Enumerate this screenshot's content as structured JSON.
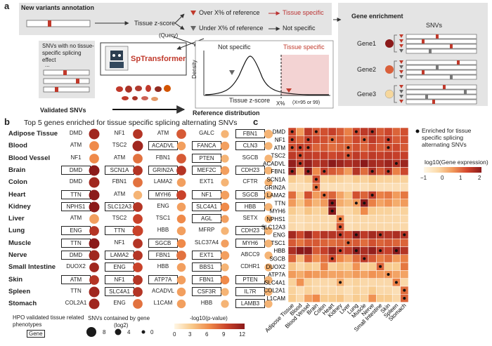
{
  "panel_a": {
    "label": "a",
    "annotation_title": "New variants annotation",
    "tissue_zscore": "Tissue z-score",
    "query": "(Query)",
    "over": "Over X% of reference",
    "tissue_specific": "Tissue specific",
    "under": "Under X% of reference",
    "not_specific": "Not specific",
    "snv_box_text": "SNVs with no tissue-specific splicing effect",
    "ellipsis": "...",
    "validated": "Validated SNVs",
    "tool": "SpTransformer",
    "dist_not_specific": "Not specific",
    "dist_tissue_specific": "Tissue specific",
    "density": "Density",
    "dist_xlabel": "Tissue z-score",
    "xpct": "X%",
    "x_note": "(X=95 or 99)",
    "ref_dist": "Reference distribution",
    "gene_enrich_title": "Gene enrichment",
    "snvs": "SNVs",
    "genes": [
      "Gene1",
      "Gene2",
      "Gene3"
    ],
    "gene_colors": [
      "#8b1a1a",
      "#d9603b",
      "#f6d79c"
    ]
  },
  "panel_b": {
    "label": "b",
    "title": "Top 5 genes enriched for tissue specific splicing alternating SNVs",
    "hpo_text": "HPO validated tissue related phenotypes",
    "gene_box": "Gene",
    "size_title": "SNVs contained  by gene",
    "size_sub": "(log2)",
    "size_labels": [
      "8",
      "4",
      "0"
    ],
    "color_title": "-log10(p-value)",
    "color_ticks": [
      "0",
      "3",
      "6",
      "9",
      "12"
    ],
    "tissues": [
      {
        "name": "Adipose Tissue",
        "genes": [
          {
            "g": "DMD",
            "b": false,
            "p": 11,
            "s": 8
          },
          {
            "g": "NF1",
            "b": false,
            "p": 10,
            "s": 7
          },
          {
            "g": "ATM",
            "b": false,
            "p": 8,
            "s": 7
          },
          {
            "g": "GALC",
            "b": false,
            "p": 4,
            "s": 5
          },
          {
            "g": "FBN1",
            "b": true,
            "p": 4,
            "s": 6
          }
        ]
      },
      {
        "name": "Blood",
        "genes": [
          {
            "g": "ATM",
            "b": false,
            "p": 6,
            "s": 7
          },
          {
            "g": "TSC2",
            "b": false,
            "p": 11,
            "s": 8
          },
          {
            "g": "ACADVL",
            "b": true,
            "p": 5,
            "s": 6
          },
          {
            "g": "FANCA",
            "b": true,
            "p": 5,
            "s": 6
          },
          {
            "g": "CLN3",
            "b": true,
            "p": 4,
            "s": 5
          }
        ]
      },
      {
        "name": "Blood Vessel",
        "genes": [
          {
            "g": "NF1",
            "b": false,
            "p": 6,
            "s": 7
          },
          {
            "g": "ATM",
            "b": false,
            "p": 7,
            "s": 7
          },
          {
            "g": "FBN1",
            "b": false,
            "p": 8,
            "s": 7
          },
          {
            "g": "PTEN",
            "b": true,
            "p": 4,
            "s": 5
          },
          {
            "g": "SGCB",
            "b": false,
            "p": 4,
            "s": 5
          }
        ]
      },
      {
        "name": "Brain",
        "genes": [
          {
            "g": "DMD",
            "b": true,
            "p": 12,
            "s": 8
          },
          {
            "g": "SCN1A",
            "b": true,
            "p": 10,
            "s": 7
          },
          {
            "g": "GRIN2A",
            "b": true,
            "p": 10,
            "s": 7
          },
          {
            "g": "MEF2C",
            "b": true,
            "p": 5,
            "s": 6
          },
          {
            "g": "CDH23",
            "b": true,
            "p": 4,
            "s": 5
          }
        ]
      },
      {
        "name": "Colon",
        "genes": [
          {
            "g": "DMD",
            "b": false,
            "p": 11,
            "s": 8
          },
          {
            "g": "FBN1",
            "b": false,
            "p": 7,
            "s": 7
          },
          {
            "g": "LAMA2",
            "b": false,
            "p": 5,
            "s": 6
          },
          {
            "g": "EXT1",
            "b": false,
            "p": 4,
            "s": 5
          },
          {
            "g": "CFTR",
            "b": false,
            "p": 4,
            "s": 5
          }
        ]
      },
      {
        "name": "Heart",
        "genes": [
          {
            "g": "TTN",
            "b": true,
            "p": 12,
            "s": 8
          },
          {
            "g": "ATM",
            "b": false,
            "p": 4,
            "s": 6
          },
          {
            "g": "MYH6",
            "b": true,
            "p": 9,
            "s": 7
          },
          {
            "g": "NF1",
            "b": true,
            "p": 5,
            "s": 6
          },
          {
            "g": "SGCB",
            "b": true,
            "p": 4,
            "s": 5
          }
        ]
      },
      {
        "name": "Kidney",
        "genes": [
          {
            "g": "NPHS1",
            "b": true,
            "p": 12,
            "s": 8
          },
          {
            "g": "SLC12A3",
            "b": true,
            "p": 10,
            "s": 7
          },
          {
            "g": "ENG",
            "b": false,
            "p": 5,
            "s": 6
          },
          {
            "g": "SLC4A1",
            "b": true,
            "p": 6,
            "s": 6
          },
          {
            "g": "HBB",
            "b": true,
            "p": 4,
            "s": 5
          }
        ]
      },
      {
        "name": "Liver",
        "genes": [
          {
            "g": "ATM",
            "b": false,
            "p": 5,
            "s": 7
          },
          {
            "g": "TSC2",
            "b": false,
            "p": 9,
            "s": 7
          },
          {
            "g": "TSC1",
            "b": false,
            "p": 6,
            "s": 6
          },
          {
            "g": "AGL",
            "b": true,
            "p": 5,
            "s": 5
          },
          {
            "g": "SETX",
            "b": false,
            "p": 4,
            "s": 5
          }
        ]
      },
      {
        "name": "Lung",
        "genes": [
          {
            "g": "ENG",
            "b": true,
            "p": 10,
            "s": 7
          },
          {
            "g": "TTN",
            "b": true,
            "p": 9,
            "s": 8
          },
          {
            "g": "HBB",
            "b": false,
            "p": 5,
            "s": 6
          },
          {
            "g": "MFRP",
            "b": false,
            "p": 4,
            "s": 5
          },
          {
            "g": "CDH23",
            "b": true,
            "p": 4,
            "s": 5
          }
        ]
      },
      {
        "name": "Muscle",
        "genes": [
          {
            "g": "TTN",
            "b": true,
            "p": 12,
            "s": 8
          },
          {
            "g": "NF1",
            "b": false,
            "p": 10,
            "s": 7
          },
          {
            "g": "SGCB",
            "b": true,
            "p": 6,
            "s": 6
          },
          {
            "g": "SLC37A4",
            "b": false,
            "p": 5,
            "s": 5
          },
          {
            "g": "MYH6",
            "b": true,
            "p": 4,
            "s": 5
          }
        ]
      },
      {
        "name": "Nerve",
        "genes": [
          {
            "g": "DMD",
            "b": true,
            "p": 11,
            "s": 8
          },
          {
            "g": "LAMA2",
            "b": true,
            "p": 10,
            "s": 7
          },
          {
            "g": "FBN1",
            "b": true,
            "p": 7,
            "s": 7
          },
          {
            "g": "EXT1",
            "b": true,
            "p": 5,
            "s": 6
          },
          {
            "g": "ABCC9",
            "b": false,
            "p": 4,
            "s": 5
          }
        ]
      },
      {
        "name": "Small Intestine",
        "genes": [
          {
            "g": "DUOX2",
            "b": false,
            "p": 11,
            "s": 7
          },
          {
            "g": "ENG",
            "b": true,
            "p": 9,
            "s": 7
          },
          {
            "g": "HBB",
            "b": false,
            "p": 5,
            "s": 6
          },
          {
            "g": "BBS1",
            "b": true,
            "p": 4,
            "s": 5
          },
          {
            "g": "CDHR1",
            "b": false,
            "p": 4,
            "s": 5
          }
        ]
      },
      {
        "name": "Skin",
        "genes": [
          {
            "g": "ATM",
            "b": true,
            "p": 10,
            "s": 7
          },
          {
            "g": "NF1",
            "b": true,
            "p": 10,
            "s": 7
          },
          {
            "g": "ATP7A",
            "b": true,
            "p": 5,
            "s": 6
          },
          {
            "g": "FBN1",
            "b": true,
            "p": 6,
            "s": 6
          },
          {
            "g": "PTEN",
            "b": true,
            "p": 4,
            "s": 5
          }
        ]
      },
      {
        "name": "Spleen",
        "genes": [
          {
            "g": "TTN",
            "b": false,
            "p": 11,
            "s": 8
          },
          {
            "g": "SLC4A1",
            "b": true,
            "p": 10,
            "s": 7
          },
          {
            "g": "ACADVL",
            "b": false,
            "p": 5,
            "s": 6
          },
          {
            "g": "CSF3R",
            "b": true,
            "p": 4,
            "s": 5
          },
          {
            "g": "IL7R",
            "b": true,
            "p": 4,
            "s": 5
          }
        ]
      },
      {
        "name": "Stomach",
        "genes": [
          {
            "g": "COL2A1",
            "b": false,
            "p": 11,
            "s": 8
          },
          {
            "g": "ENG",
            "b": false,
            "p": 7,
            "s": 7
          },
          {
            "g": "L1CAM",
            "b": false,
            "p": 5,
            "s": 6
          },
          {
            "g": "HBB",
            "b": false,
            "p": 4,
            "s": 5
          },
          {
            "g": "LAMB3",
            "b": true,
            "p": 4,
            "s": 5
          }
        ]
      }
    ]
  },
  "chart_data": {
    "type": "heatmap",
    "title": "",
    "legend_dot": "Enriched for tissue specific splicing alternating SNVs",
    "color_title": "log10(Gene expression)",
    "color_ticks": [
      "−1",
      "0",
      "1",
      "2"
    ],
    "vmin": -1,
    "vmax": 2,
    "rows": [
      "DMD",
      "NF1",
      "ATM",
      "TSC2",
      "ACADVL",
      "FBN1",
      "SCN1A",
      "GRIN2A",
      "LAMA2",
      "TTN",
      "MYH6",
      "NPHS1",
      "SLC12A3",
      "ENG",
      "TSC1",
      "HBB",
      "SGCB",
      "DUOX2",
      "ATP7A",
      "SLC4A1",
      "COL2A1",
      "L1CAM"
    ],
    "cols": [
      "Adipose Tissue",
      "Blood",
      "Blood Vessel",
      "Brain",
      "Colon",
      "Heart",
      "Kidney",
      "Liver",
      "Lung",
      "Muscle",
      "Nerve",
      "Small Intestine",
      "Skin",
      "Spleen",
      "Stomach"
    ],
    "values": [
      [
        1.2,
        0.3,
        1.4,
        1.0,
        1.1,
        1.3,
        1.0,
        0.6,
        1.2,
        1.4,
        1.5,
        1.0,
        1.2,
        0.9,
        1.1
      ],
      [
        1.2,
        0.9,
        1.3,
        1.2,
        1.1,
        0.9,
        1.0,
        0.8,
        1.2,
        1.0,
        1.4,
        1.1,
        1.3,
        1.0,
        1.1
      ],
      [
        1.1,
        1.3,
        1.2,
        0.9,
        1.0,
        0.8,
        0.9,
        0.9,
        1.1,
        0.9,
        1.2,
        1.0,
        1.1,
        1.2,
        1.0
      ],
      [
        1.4,
        1.2,
        1.4,
        1.3,
        1.3,
        1.2,
        1.3,
        1.1,
        1.4,
        1.2,
        1.4,
        1.3,
        1.4,
        1.3,
        1.3
      ],
      [
        1.9,
        1.5,
        1.9,
        1.5,
        1.6,
        2.0,
        1.8,
        1.6,
        1.7,
        2.0,
        1.7,
        1.6,
        1.8,
        1.6,
        1.8
      ],
      [
        1.8,
        0.0,
        1.9,
        0.5,
        1.3,
        1.0,
        0.8,
        0.3,
        1.5,
        0.8,
        1.6,
        1.0,
        1.4,
        0.6,
        1.2
      ],
      [
        -0.3,
        -0.5,
        -0.3,
        1.1,
        -0.4,
        -0.3,
        -0.4,
        -0.5,
        -0.3,
        -0.4,
        -0.2,
        -0.4,
        -0.4,
        -0.4,
        -0.4
      ],
      [
        -0.6,
        -0.6,
        -0.6,
        0.8,
        -0.6,
        -0.6,
        -0.6,
        -0.6,
        -0.6,
        -0.6,
        -0.5,
        -0.6,
        -0.6,
        -0.6,
        -0.6
      ],
      [
        0.8,
        -0.3,
        1.1,
        0.3,
        0.8,
        0.9,
        0.2,
        -0.2,
        1.1,
        0.9,
        1.4,
        0.6,
        0.7,
        0.3,
        0.7
      ],
      [
        0.3,
        -0.2,
        0.4,
        0.0,
        0.3,
        2.2,
        0.1,
        -0.1,
        0.3,
        2.0,
        0.6,
        0.2,
        0.4,
        0.1,
        0.3
      ],
      [
        -0.3,
        -0.5,
        -0.2,
        -0.4,
        -0.3,
        2.0,
        -0.4,
        -0.5,
        -0.3,
        0.5,
        -0.3,
        -0.4,
        -0.4,
        -0.5,
        -0.4
      ],
      [
        -0.5,
        -0.6,
        -0.5,
        -0.5,
        -0.5,
        -0.5,
        0.6,
        -0.6,
        -0.5,
        -0.5,
        -0.5,
        -0.5,
        -0.5,
        -0.5,
        -0.5
      ],
      [
        -0.5,
        -0.6,
        -0.5,
        -0.5,
        -0.5,
        -0.5,
        1.0,
        -0.6,
        -0.5,
        -0.5,
        -0.5,
        -0.5,
        -0.5,
        -0.5,
        -0.5
      ],
      [
        1.7,
        1.2,
        1.8,
        1.2,
        1.5,
        1.5,
        1.4,
        1.2,
        2.0,
        1.4,
        1.7,
        1.5,
        1.5,
        1.6,
        1.5
      ],
      [
        1.0,
        0.7,
        1.0,
        1.0,
        0.9,
        0.8,
        0.9,
        0.9,
        1.0,
        0.8,
        1.1,
        0.9,
        1.0,
        0.9,
        0.9
      ],
      [
        1.6,
        3.0,
        2.0,
        1.0,
        1.3,
        1.8,
        1.3,
        1.4,
        2.2,
        1.6,
        1.9,
        1.4,
        1.3,
        2.4,
        1.5
      ],
      [
        0.9,
        -0.1,
        1.0,
        0.4,
        0.8,
        1.2,
        0.5,
        0.2,
        0.8,
        1.4,
        1.0,
        0.6,
        0.8,
        0.3,
        0.6
      ],
      [
        -0.2,
        -0.5,
        -0.3,
        -0.4,
        0.6,
        -0.4,
        -0.2,
        -0.3,
        0.4,
        -0.4,
        -0.3,
        0.9,
        -0.3,
        -0.3,
        0.7
      ],
      [
        0.3,
        0.1,
        0.4,
        0.3,
        0.3,
        0.2,
        0.2,
        0.1,
        0.3,
        0.2,
        0.4,
        0.3,
        0.4,
        0.2,
        0.2
      ],
      [
        -0.4,
        0.4,
        -0.4,
        -0.5,
        -0.5,
        -0.5,
        0.1,
        -0.5,
        -0.4,
        -0.5,
        -0.5,
        -0.5,
        -0.5,
        0.6,
        -0.5
      ],
      [
        -0.4,
        -0.6,
        -0.4,
        -0.5,
        -0.5,
        -0.5,
        -0.5,
        -0.6,
        -0.4,
        -0.5,
        -0.3,
        -0.5,
        -0.5,
        -0.6,
        0.8
      ],
      [
        -0.3,
        -0.5,
        0.2,
        0.5,
        -0.3,
        -0.3,
        -0.2,
        -0.5,
        -0.3,
        -0.4,
        0.4,
        -0.3,
        -0.3,
        -0.5,
        0.9
      ]
    ],
    "dots": [
      [
        0,
        0
      ],
      [
        0,
        3
      ],
      [
        0,
        8
      ],
      [
        0,
        10
      ],
      [
        1,
        0
      ],
      [
        1,
        2
      ],
      [
        1,
        5
      ],
      [
        1,
        9
      ],
      [
        1,
        12
      ],
      [
        2,
        0
      ],
      [
        2,
        1
      ],
      [
        2,
        2
      ],
      [
        2,
        7
      ],
      [
        2,
        12
      ],
      [
        3,
        1
      ],
      [
        3,
        7
      ],
      [
        4,
        1
      ],
      [
        4,
        13
      ],
      [
        5,
        0
      ],
      [
        5,
        2
      ],
      [
        5,
        4
      ],
      [
        5,
        10
      ],
      [
        5,
        12
      ],
      [
        6,
        3
      ],
      [
        7,
        3
      ],
      [
        8,
        4
      ],
      [
        8,
        10
      ],
      [
        9,
        5
      ],
      [
        9,
        8
      ],
      [
        9,
        9
      ],
      [
        10,
        5
      ],
      [
        11,
        6
      ],
      [
        12,
        6
      ],
      [
        13,
        6
      ],
      [
        13,
        8
      ],
      [
        13,
        11
      ],
      [
        13,
        14
      ],
      [
        14,
        7
      ],
      [
        15,
        6
      ],
      [
        15,
        8
      ],
      [
        15,
        11
      ],
      [
        15,
        13
      ],
      [
        16,
        5
      ],
      [
        16,
        9
      ],
      [
        17,
        11
      ],
      [
        18,
        12
      ],
      [
        19,
        6
      ],
      [
        19,
        13
      ],
      [
        20,
        14
      ],
      [
        21,
        14
      ]
    ]
  }
}
